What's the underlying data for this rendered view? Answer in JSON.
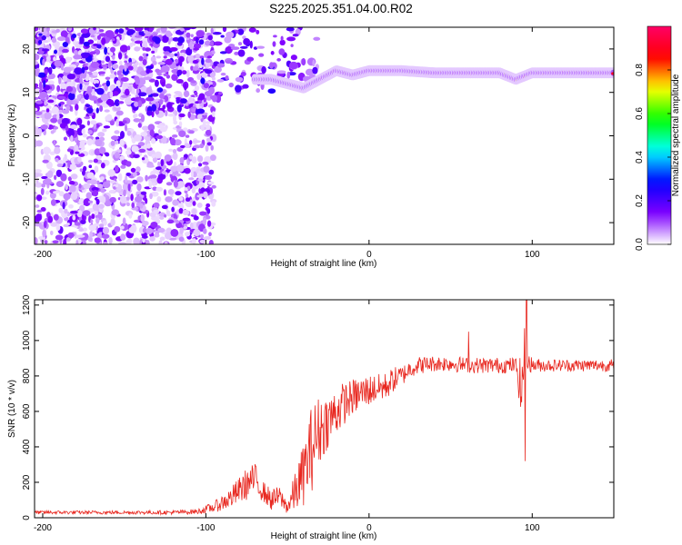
{
  "title": "S225.2025.351.04.00.R02",
  "chart_data": [
    {
      "type": "heatmap",
      "xlabel": "Height of straight line (km)",
      "ylabel": "Frequency (Hz)",
      "xlim": [
        -205,
        150
      ],
      "ylim": [
        -25,
        25
      ],
      "x_ticks": [
        -200,
        -100,
        0,
        100
      ],
      "x_tick_labels": [
        "-200",
        "-100",
        "0",
        "100"
      ],
      "y_ticks": [
        -20,
        -10,
        0,
        10,
        20
      ],
      "y_tick_labels": [
        "-20",
        "-10",
        "0",
        "10",
        "20"
      ],
      "colorbar": {
        "label": "Normalized spectral amplitude",
        "range": [
          0,
          1
        ],
        "ticks": [
          0.0,
          0.2,
          0.4,
          0.6,
          0.8
        ],
        "tick_labels": [
          "0.0",
          "0.2",
          "0.4",
          "0.6",
          "0.8"
        ],
        "colors": [
          "#ffffff",
          "#7f00ff",
          "#0000ff",
          "#00ffff",
          "#00ff00",
          "#ffff00",
          "#ff0000",
          "#ff0066"
        ]
      },
      "ridge": {
        "x": [
          -60,
          -40,
          -30,
          -20,
          -10,
          0,
          10,
          20,
          40,
          60,
          80,
          90,
          100,
          120,
          150
        ],
        "y": [
          13,
          11,
          13,
          15,
          14,
          15,
          15,
          15,
          14.5,
          14.5,
          14.5,
          13,
          14.5,
          14.5,
          14.5
        ]
      },
      "grid": false
    },
    {
      "type": "line",
      "xlabel": "Height of straight line (km)",
      "ylabel": "SNR (10 * v/v)",
      "xlim": [
        -205,
        150
      ],
      "ylim": [
        0,
        1230
      ],
      "x_ticks": [
        -200,
        -100,
        0,
        100
      ],
      "x_tick_labels": [
        "-200",
        "-100",
        "0",
        "100"
      ],
      "y_ticks": [
        0,
        200,
        400,
        600,
        800,
        1000,
        1200
      ],
      "y_tick_labels": [
        "0",
        "200",
        "400",
        "600",
        "800",
        "1000",
        "1200"
      ],
      "series": [
        {
          "color": "#e8271f",
          "x": [
            -205,
            -180,
            -150,
            -120,
            -105,
            -95,
            -85,
            -75,
            -70,
            -65,
            -60,
            -55,
            -50,
            -45,
            -40,
            -35,
            -30,
            -25,
            -20,
            -15,
            -10,
            -5,
            0,
            5,
            10,
            15,
            20,
            25,
            30,
            40,
            50,
            60,
            70,
            80,
            90,
            94,
            96,
            98,
            100,
            110,
            120,
            130,
            140,
            150
          ],
          "values": [
            30,
            30,
            30,
            30,
            35,
            60,
            110,
            190,
            220,
            150,
            100,
            120,
            60,
            150,
            250,
            400,
            500,
            550,
            600,
            650,
            680,
            700,
            720,
            730,
            740,
            780,
            800,
            840,
            860,
            870,
            870,
            860,
            860,
            860,
            860,
            700,
            1200,
            880,
            860,
            860,
            860,
            860,
            860,
            860
          ],
          "noise": [
            10,
            10,
            10,
            12,
            15,
            30,
            60,
            90,
            90,
            60,
            60,
            60,
            40,
            120,
            180,
            250,
            200,
            150,
            140,
            120,
            100,
            100,
            90,
            80,
            80,
            70,
            60,
            50,
            50,
            45,
            45,
            45,
            45,
            45,
            45,
            200,
            400,
            60,
            40,
            35,
            35,
            35,
            35,
            35
          ],
          "spikes": [
            {
              "x": 61,
              "value": 1050
            },
            {
              "x": 96.5,
              "value": 1230
            },
            {
              "x": 95.5,
              "value": 320
            }
          ]
        }
      ],
      "grid": false
    }
  ]
}
